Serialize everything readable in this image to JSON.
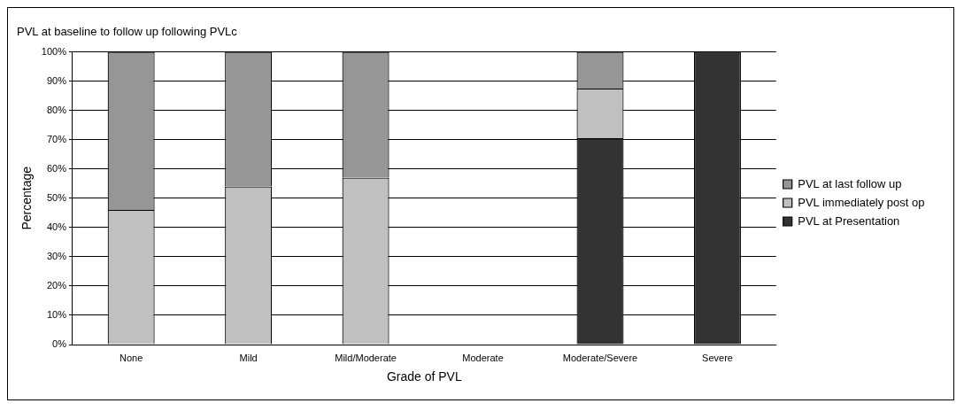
{
  "chart_data": {
    "type": "bar",
    "title": "PVL at baseline to follow up following PVLc",
    "xlabel": "Grade of PVL",
    "ylabel": "Percentage",
    "categories": [
      "None",
      "Mild",
      "Mild/Moderate",
      "Moderate",
      "Moderate/Severe",
      "Severe"
    ],
    "stacked": true,
    "series": [
      {
        "name": "PVL at Presentation",
        "color": "#333333",
        "values": [
          0,
          0,
          0,
          0,
          70.5,
          100
        ]
      },
      {
        "name": "PVL immediately post op",
        "color": "#c0c0c0",
        "values": [
          46,
          54,
          57,
          0,
          17,
          0
        ]
      },
      {
        "name": "PVL at last follow up",
        "color": "#969696",
        "values": [
          54,
          46,
          43,
          0,
          12.5,
          0
        ]
      }
    ],
    "ylim": [
      0,
      100
    ],
    "yticks": [
      {
        "value": 0,
        "label": "0%"
      },
      {
        "value": 10,
        "label": "10%"
      },
      {
        "value": 20,
        "label": "20%"
      },
      {
        "value": 30,
        "label": "30%"
      },
      {
        "value": 40,
        "label": "40%"
      },
      {
        "value": 50,
        "label": "50%"
      },
      {
        "value": 60,
        "label": "60%"
      },
      {
        "value": 70,
        "label": "70%"
      },
      {
        "value": 80,
        "label": "80%"
      },
      {
        "value": 90,
        "label": "90%"
      },
      {
        "value": 100,
        "label": "100%"
      }
    ],
    "grid": "y",
    "legend": "right"
  }
}
